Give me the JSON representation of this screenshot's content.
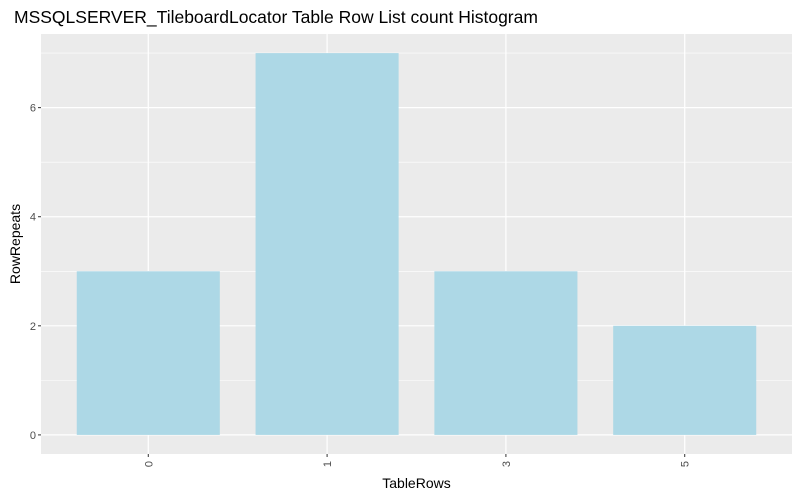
{
  "chart_data": {
    "type": "bar",
    "title": "MSSQLSERVER_TileboardLocator Table Row List count Histogram",
    "xlabel": "TableRows",
    "ylabel": "RowRepeats",
    "categories": [
      "0",
      "1",
      "3",
      "5"
    ],
    "values": [
      3,
      7,
      3,
      2
    ],
    "ylim": [
      -0.35,
      7.35
    ],
    "yticks": [
      0,
      2,
      4,
      6
    ],
    "x_tick_rotation": "vertical",
    "grid": true,
    "legend": "none",
    "bar_color": "#ADD8E6",
    "panel_background": "#EBEBEB",
    "grid_color": "#FFFFFF"
  }
}
